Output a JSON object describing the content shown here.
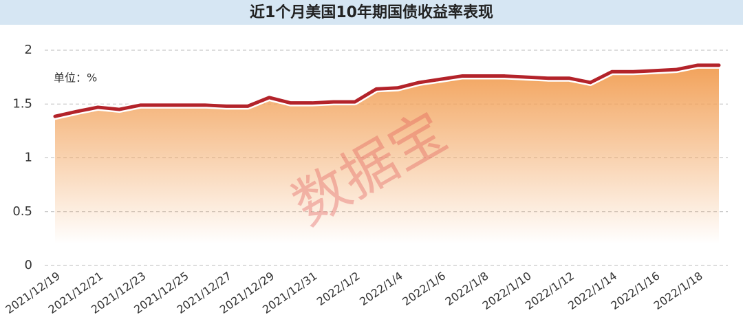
{
  "chart_data": {
    "type": "area-line",
    "title": "近1个月美国10年期国债收益率表现",
    "unit_label": "单位：%",
    "watermark": "数据宝",
    "categories": [
      "2021/12/19",
      null,
      "2021/12/21",
      null,
      "2021/12/23",
      null,
      "2021/12/25",
      null,
      "2021/12/27",
      null,
      "2021/12/29",
      null,
      "2021/12/31",
      null,
      "2022/1/2",
      null,
      "2022/1/4",
      null,
      "2022/1/6",
      null,
      "2022/1/8",
      null,
      "2022/1/10",
      null,
      "2022/1/12",
      null,
      "2022/1/14",
      null,
      "2022/1/16",
      null,
      "2022/1/18",
      null
    ],
    "values": [
      1.385,
      1.43,
      1.47,
      1.45,
      1.49,
      1.49,
      1.49,
      1.49,
      1.48,
      1.48,
      1.56,
      1.51,
      1.51,
      1.52,
      1.52,
      1.64,
      1.65,
      1.7,
      1.73,
      1.76,
      1.76,
      1.76,
      1.75,
      1.74,
      1.74,
      1.7,
      1.8,
      1.8,
      1.81,
      1.82,
      1.86,
      1.86
    ],
    "color": "#b3232a",
    "area_color": "#f2a25a",
    "ylim": [
      0,
      2
    ],
    "yticks": [
      0,
      0.5,
      1,
      1.5,
      2
    ],
    "grid": true
  }
}
